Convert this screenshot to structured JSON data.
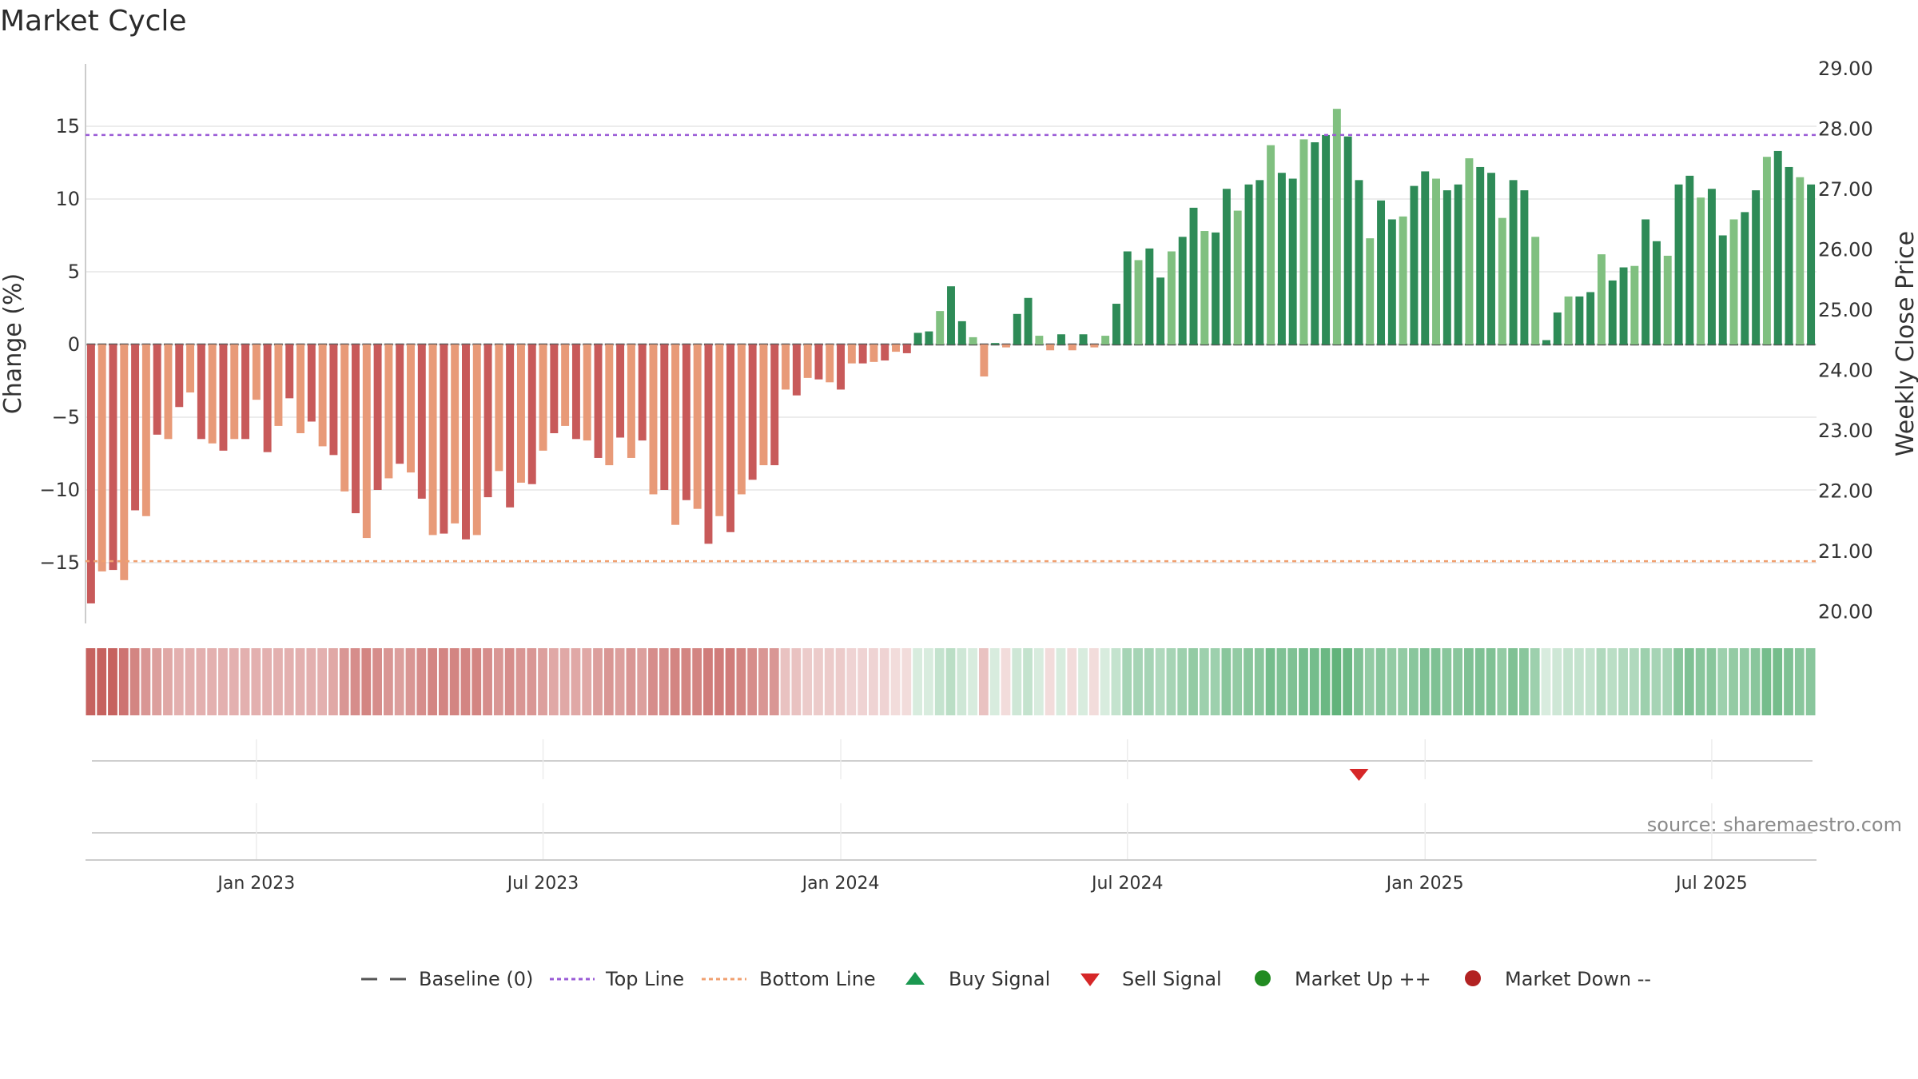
{
  "chart_data": {
    "type": "bar",
    "title": "Market Cycle",
    "ylabel_left": "Change (%)",
    "ylabel_right": "Weekly Close Price",
    "ylim_left": [
      -19,
      19
    ],
    "yticks_left": [
      15,
      10,
      5,
      0,
      -5,
      -10,
      -15
    ],
    "ytick_labels_left": [
      "15",
      "10",
      "5",
      "0",
      "−5",
      "−10",
      "−15"
    ],
    "yticks_right": [
      "29.00",
      "28.00",
      "27.00",
      "26.00",
      "25.00",
      "24.00",
      "23.00",
      "22.00",
      "21.00",
      "20.00"
    ],
    "xtick_labels": [
      "Jan 2023",
      "Jul 2023",
      "Jan 2024",
      "Jul 2024",
      "Jan 2025",
      "Jul 2025"
    ],
    "top_line": 14.4,
    "bottom_line": -14.9,
    "values": [
      -17.8,
      -15.6,
      -15.5,
      -16.2,
      -11.4,
      -11.8,
      -6.2,
      -6.5,
      -4.3,
      -3.3,
      -6.5,
      -6.8,
      -7.3,
      -6.5,
      -6.5,
      -3.8,
      -7.4,
      -5.6,
      -3.7,
      -6.1,
      -5.3,
      -7.0,
      -7.6,
      -10.1,
      -11.6,
      -13.3,
      -10.0,
      -9.2,
      -8.2,
      -8.8,
      -10.6,
      -13.1,
      -13.0,
      -12.3,
      -13.4,
      -13.1,
      -10.5,
      -8.7,
      -11.2,
      -9.5,
      -9.6,
      -7.3,
      -6.1,
      -5.6,
      -6.5,
      -6.6,
      -7.8,
      -8.3,
      -6.4,
      -7.8,
      -6.6,
      -10.3,
      -10.0,
      -12.4,
      -10.7,
      -11.3,
      -13.7,
      -11.8,
      -12.9,
      -10.3,
      -9.3,
      -8.3,
      -8.3,
      -3.1,
      -3.5,
      -2.3,
      -2.4,
      -2.6,
      -3.1,
      -1.3,
      -1.3,
      -1.2,
      -1.1,
      -0.5,
      -0.6,
      0.8,
      0.9,
      2.3,
      4.0,
      1.6,
      0.5,
      -2.2,
      0.1,
      -0.2,
      2.1,
      3.2,
      0.6,
      -0.4,
      0.7,
      -0.4,
      0.7,
      -0.2,
      0.6,
      2.8,
      6.4,
      5.8,
      6.6,
      4.6,
      6.4,
      7.4,
      9.4,
      7.8,
      7.7,
      10.7,
      9.2,
      11.0,
      11.3,
      13.7,
      11.8,
      11.4,
      14.1,
      13.9,
      14.4,
      16.2,
      14.3,
      11.3,
      7.3,
      9.9,
      8.6,
      8.8,
      10.9,
      11.9,
      11.4,
      10.6,
      11.0,
      12.8,
      12.2,
      11.8,
      8.7,
      11.3,
      10.6,
      7.4,
      0.3,
      2.2,
      3.3,
      3.3,
      3.6,
      6.2,
      4.4,
      5.3,
      5.4,
      8.6,
      7.1,
      6.1,
      11.0,
      11.6,
      10.1,
      10.7,
      7.5,
      8.6,
      9.1,
      10.6,
      12.9,
      13.3,
      12.2,
      11.5,
      11.0
    ],
    "heat_intensity": [
      0.9,
      0.9,
      0.9,
      0.8,
      0.7,
      0.6,
      0.55,
      0.5,
      0.45,
      0.45,
      0.45,
      0.45,
      0.45,
      0.45,
      0.45,
      0.45,
      0.45,
      0.45,
      0.45,
      0.45,
      0.45,
      0.45,
      0.5,
      0.6,
      0.65,
      0.7,
      0.65,
      0.6,
      0.55,
      0.6,
      0.65,
      0.7,
      0.7,
      0.7,
      0.7,
      0.7,
      0.65,
      0.6,
      0.65,
      0.6,
      0.6,
      0.55,
      0.5,
      0.5,
      0.5,
      0.5,
      0.55,
      0.6,
      0.55,
      0.6,
      0.55,
      0.65,
      0.65,
      0.7,
      0.7,
      0.7,
      0.75,
      0.75,
      0.75,
      0.7,
      0.65,
      0.6,
      0.6,
      0.35,
      0.35,
      0.3,
      0.3,
      0.3,
      0.3,
      0.25,
      0.25,
      0.25,
      0.25,
      0.2,
      0.2,
      0.2,
      0.2,
      0.3,
      0.35,
      0.25,
      0.2,
      0.35,
      0.2,
      0.2,
      0.25,
      0.3,
      0.2,
      0.2,
      0.2,
      0.2,
      0.2,
      0.2,
      0.2,
      0.3,
      0.45,
      0.45,
      0.45,
      0.4,
      0.45,
      0.5,
      0.55,
      0.5,
      0.5,
      0.6,
      0.55,
      0.6,
      0.6,
      0.7,
      0.65,
      0.65,
      0.7,
      0.7,
      0.75,
      0.8,
      0.75,
      0.65,
      0.55,
      0.6,
      0.55,
      0.55,
      0.6,
      0.65,
      0.65,
      0.6,
      0.6,
      0.65,
      0.65,
      0.65,
      0.55,
      0.65,
      0.6,
      0.5,
      0.2,
      0.25,
      0.3,
      0.3,
      0.3,
      0.4,
      0.35,
      0.4,
      0.4,
      0.5,
      0.45,
      0.45,
      0.6,
      0.65,
      0.6,
      0.6,
      0.5,
      0.55,
      0.55,
      0.6,
      0.7,
      0.7,
      0.65,
      0.6,
      0.6
    ],
    "sell_signal_index": 115,
    "tick_indices": [
      15,
      41,
      68,
      94,
      121,
      147
    ],
    "legend": [
      "Baseline (0)",
      "Top Line",
      "Bottom Line",
      "Buy Signal",
      "Sell Signal",
      "Market Up ++",
      "Market Down --"
    ],
    "source": "source: sharemaestro.com",
    "colors": {
      "neg_dark": "#c85a5a",
      "neg_light": "#e89a78",
      "pos_dark": "#2e8b57",
      "pos_light": "#80c080",
      "top_line": "#9a5bd6",
      "bottom_line": "#f0a070",
      "baseline": "#555555",
      "buy": "#1a9850",
      "sell": "#d62728",
      "market_up": "#228b22",
      "market_down": "#b22222"
    }
  }
}
